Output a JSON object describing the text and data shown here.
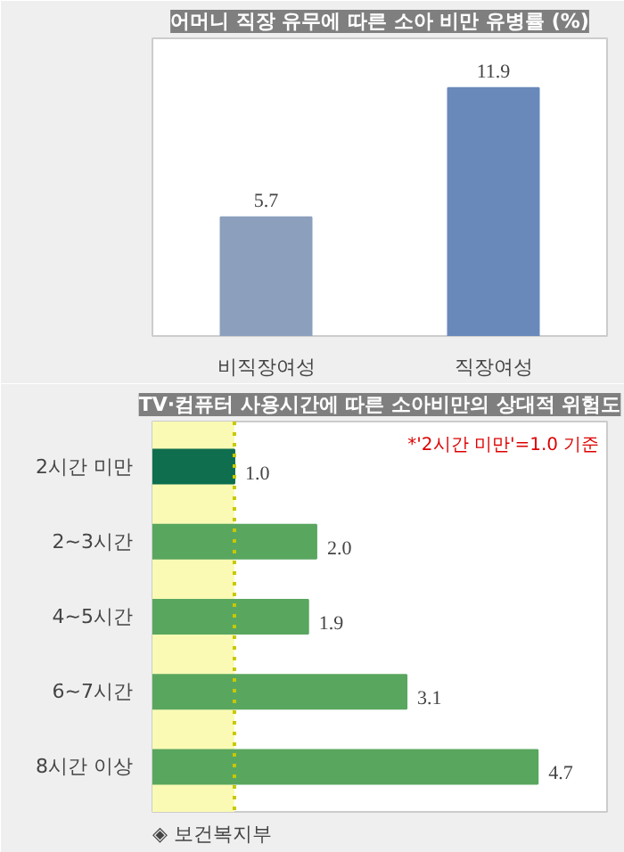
{
  "chart_data": [
    {
      "type": "bar",
      "title": "어머니 직장 유무에 따른 소아 비만 유병률 (%)",
      "categories": [
        "비직장여성",
        "직장여성"
      ],
      "values": [
        5.7,
        11.9
      ],
      "colors": [
        "#8c9fbd",
        "#6889b9"
      ],
      "data_labels": true,
      "grid": false
    },
    {
      "type": "bar",
      "orientation": "horizontal",
      "title": "TV·컴퓨터 사용시간에 따른 소아비만의 상대적 위험도",
      "categories": [
        "2시간 미만",
        "2~3시간",
        "4~5시간",
        "6~7시간",
        "8시간 이상"
      ],
      "values": [
        1.0,
        2.0,
        1.9,
        3.1,
        4.7
      ],
      "value_labels": [
        "1.0",
        "2.0",
        "1.9",
        "3.1",
        "4.7"
      ],
      "colors": [
        "#0f6e4e",
        "#59a65f",
        "#59a65f",
        "#59a65f",
        "#59a65f"
      ],
      "grid": false,
      "bands": [
        {
          "axis": "x",
          "from": 0,
          "to": 1.0,
          "color": "#fafab4"
        }
      ],
      "ref_lines": [
        {
          "axis": "x",
          "value": 1.0,
          "color": "#c8c800",
          "line_style": "dotted"
        }
      ],
      "annotations": [
        "*'2시간 미만'=1.0 기준",
        "◈ 보건복지부"
      ]
    }
  ]
}
